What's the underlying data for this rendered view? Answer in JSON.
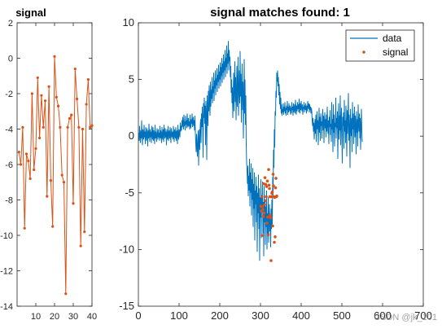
{
  "chart_data": [
    {
      "type": "line",
      "title": "signal",
      "xlim": [
        0,
        40
      ],
      "ylim": [
        -14,
        2
      ],
      "xticks": [
        10,
        20,
        30,
        40
      ],
      "yticks": [
        2,
        0,
        -2,
        -4,
        -6,
        -8,
        -10,
        -12,
        -14
      ],
      "grid": false,
      "series": [
        {
          "color": "#D95319",
          "marker": "dot",
          "x": [
            1,
            2,
            3,
            4,
            5,
            6,
            7,
            8,
            9,
            10,
            11,
            12,
            13,
            14,
            15,
            16,
            17,
            18,
            19,
            20,
            21,
            22,
            23,
            24,
            25,
            26,
            27,
            28,
            29,
            30,
            31,
            32,
            33,
            34,
            35,
            36,
            37,
            38,
            39,
            40
          ],
          "values": [
            -5.3,
            -6.0,
            -3.9,
            -9.6,
            -5.4,
            -5.8,
            -6.8,
            -2.0,
            -6.3,
            -5.1,
            -1.1,
            -4.5,
            -2.1,
            -3.9,
            -2.4,
            -7.8,
            -1.6,
            -6.9,
            -9.5,
            0.1,
            -2.2,
            -2.7,
            -3.9,
            -6.6,
            -7.0,
            -13.3,
            -3.9,
            -3.4,
            -3.2,
            -8.2,
            -0.6,
            -2.3,
            -3.9,
            -10.6,
            -4.0,
            -9.8,
            -2.6,
            -1.2,
            -3.9,
            -3.8
          ]
        }
      ]
    },
    {
      "type": "line",
      "title": "signal matches found: 1",
      "xlim": [
        0,
        700
      ],
      "ylim": [
        -15,
        10
      ],
      "xticks": [
        0,
        100,
        200,
        300,
        400,
        500,
        600,
        700
      ],
      "yticks": [
        10,
        5,
        0,
        -5,
        -10,
        -15
      ],
      "grid": false,
      "legend": "top-right",
      "series": [
        {
          "name": "data",
          "color": "#0072BD",
          "marker": "none",
          "x_start": 1,
          "values": [
            0.3,
            -0.4,
            0.9,
            0.1,
            -0.6,
            0.5,
            -0.2,
            1.4,
            0.0,
            -0.8,
            0.6,
            0.2,
            -0.3,
            1.0,
            -0.1,
            0.4,
            -0.7,
            0.8,
            0.0,
            -0.4,
            0.7,
            0.3,
            -0.9,
            0.5,
            -0.2,
            1.1,
            0.1,
            -0.5,
            0.6,
            -0.1,
            0.4,
            -0.6,
            0.9,
            0.2,
            -0.3,
            0.8,
            -0.4,
            0.5,
            0.1,
            -0.7,
            1.0,
            -0.2,
            0.4,
            0.0,
            -0.5,
            0.7,
            0.2,
            -0.3,
            0.6,
            -0.1,
            0.3,
            -0.4,
            0.9,
            -0.2,
            0.5,
            0.1,
            -0.6,
            0.8,
            0.0,
            -0.3,
            0.6,
            -0.5,
            1.0,
            0.2,
            -0.2,
            0.7,
            -0.1,
            0.4,
            -0.8,
            0.6,
            0.1,
            -0.3,
            0.9,
            -0.4,
            0.3,
            0.5,
            -0.2,
            0.8,
            0.0,
            -0.6,
            0.7,
            0.2,
            -0.1,
            0.4,
            -0.3,
            0.9,
            0.1,
            -0.5,
            0.6,
            0.2,
            -0.2,
            0.8,
            -0.4,
            0.3,
            0.5,
            -0.7,
            1.0,
            0.0,
            -0.3,
            0.6,
            0.3,
            -0.1,
            1.2,
            0.4,
            0.9,
            0.5,
            1.4,
            0.8,
            1.7,
            1.1,
            0.6,
            1.9,
            0.9,
            1.3,
            0.5,
            1.8,
            1.0,
            1.4,
            0.7,
            2.0,
            1.1,
            0.8,
            1.6,
            0.9,
            1.3,
            0.6,
            1.9,
            1.0,
            0.7,
            1.5,
            1.1,
            2.0,
            0.8,
            1.2,
            1.7,
            0.9,
            1.4,
            0.5,
            1.8,
            0.3,
            -0.6,
            -1.4,
            0.2,
            -0.9,
            -1.8,
            -0.3,
            0.5,
            -2.6,
            -0.4,
            0.6,
            -1.2,
            0.9,
            1.5,
            -0.6,
            2.0,
            0.8,
            2.6,
            1.3,
            -1.9,
            2.9,
            1.6,
            3.4,
            1.1,
            2.7,
            -0.8,
            3.1,
            1.9,
            -2.1,
            3.6,
            2.4,
            0.9,
            4.0,
            2.2,
            4.5,
            3.0,
            1.8,
            4.8,
            2.6,
            4.1,
            3.3,
            5.2,
            2.9,
            4.4,
            3.8,
            5.6,
            3.1,
            4.9,
            4.2,
            5.8,
            3.6,
            5.1,
            4.5,
            6.0,
            3.9,
            5.4,
            4.8,
            6.3,
            4.2,
            5.7,
            5.0,
            6.5,
            4.4,
            6.1,
            5.3,
            6.9,
            4.7,
            6.4,
            5.6,
            7.2,
            5.0,
            6.6,
            5.8,
            7.6,
            5.2,
            6.9,
            6.1,
            8.0,
            5.5,
            7.3,
            6.4,
            8.4,
            5.8,
            7.6,
            6.6,
            7.0,
            5.2,
            6.2,
            3.8,
            5.0,
            2.9,
            4.3,
            1.6,
            3.5,
            5.6,
            2.2,
            4.2,
            6.6,
            3.0,
            5.2,
            1.4,
            3.8,
            6.2,
            2.6,
            4.6,
            7.0,
            1.8,
            4.0,
            5.8,
            2.9,
            7.5,
            3.5,
            5.5,
            1.2,
            4.1,
            6.4,
            2.3,
            4.8,
            -0.2,
            3.2,
            6.8,
            2.0,
            5.0,
            1.0,
            3.6,
            -0.8,
            -2.4,
            -3.1,
            -4.2,
            -2.6,
            -5.3,
            -3.5,
            -4.8,
            -2.0,
            -6.2,
            -3.2,
            -5.0,
            -2.4,
            -7.0,
            -3.8,
            -5.6,
            -2.8,
            -8.0,
            -4.2,
            -6.4,
            -3.2,
            -9.2,
            -4.8,
            -6.0,
            -3.6,
            -7.6,
            -4.4,
            -10.2,
            -5.0,
            -6.8,
            -3.4,
            -8.2,
            -4.6,
            -11.0,
            -5.4,
            -7.2,
            -3.8,
            -9.0,
            -5.2,
            -6.6,
            -4.0,
            -8.6,
            -5.8,
            -10.6,
            -4.4,
            -7.6,
            -5.6,
            -9.6,
            -6.2,
            -8.0,
            -4.8,
            -10.0,
            -6.8,
            -8.8,
            -5.4,
            -9.4,
            -7.2,
            -6.0,
            -8.4,
            -7.0,
            -9.8,
            -6.4,
            -8.2,
            -5.6,
            -7.8,
            -3.6,
            -5.2,
            -1.2,
            -2.8,
            0.6,
            -1.0,
            2.2,
            1.8,
            4.0,
            3.4,
            5.6,
            4.8,
            5.8,
            4.4,
            5.2,
            3.6,
            4.6,
            2.8,
            3.9,
            2.4,
            3.4,
            2.0,
            2.8,
            1.8,
            2.4,
            2.1,
            2.9,
            1.9,
            2.6,
            2.2,
            3.0,
            2.0,
            2.5,
            1.8,
            2.7,
            2.3,
            3.1,
            1.9,
            2.6,
            2.1,
            2.9,
            2.4,
            2.2,
            2.7,
            1.9,
            2.5,
            2.0,
            3.0,
            2.3,
            2.6,
            1.8,
            2.9,
            2.1,
            2.4,
            2.8,
            2.0,
            3.2,
            2.5,
            1.9,
            2.7,
            2.2,
            3.0,
            2.4,
            2.8,
            2.1,
            3.3,
            2.6,
            2.0,
            2.9,
            2.3,
            3.1,
            2.5,
            2.2,
            2.8,
            1.9,
            2.6,
            2.4,
            3.0,
            2.1,
            2.7,
            2.3,
            2.9,
            2.5,
            2.0,
            2.7,
            2.2,
            3.1,
            2.6,
            2.4,
            2.9,
            2.1,
            2.8,
            2.3,
            2.6,
            2.0,
            2.5,
            2.2,
            1.4,
            0.9,
            1.6,
            0.4,
            1.2,
            -0.3,
            0.8,
            1.5,
            0.2,
            1.9,
            -0.5,
            1.0,
            2.2,
            0.6,
            1.4,
            -0.8,
            1.1,
            2.5,
            0.3,
            1.7,
            -0.4,
            2.0,
            0.9,
            1.3,
            -0.2,
            1.6,
            2.4,
            0.5,
            1.8,
            -0.6,
            1.2,
            2.1,
            0.7,
            1.5,
            -0.1,
            1.9,
            0.4,
            2.6,
            1.0,
            0.2,
            1.4,
            -0.7,
            1.7,
            0.8,
            2.3,
            0.1,
            1.1,
            -0.5,
            3.0,
            0.6,
            1.5,
            -1.4,
            2.8,
            0.3,
            1.9,
            -0.9,
            1.2,
            0.8,
            3.4,
            -0.2,
            1.6,
            0.7,
            2.2,
            -2.0,
            1.0,
            2.9,
            -0.3,
            1.8,
            0.5,
            3.6,
            -0.8,
            1.3,
            2.5,
            0.1,
            -2.4,
            1.7,
            0.9,
            2.1,
            -1.1,
            3.2,
            0.4,
            1.4,
            -0.6,
            2.7,
            1.0,
            -1.8,
            2.3,
            0.2,
            1.5,
            3.8,
            -0.4,
            1.9,
            0.7,
            -2.8,
            2.4,
            1.1,
            0.0,
            1.6,
            -1.4,
            3.0,
            0.6,
            2.0,
            -0.7,
            1.3,
            2.6,
            -0.1,
            1.8,
            0.9,
            -1.6,
            2.2,
            0.3,
            1.5,
            -0.9,
            2.8,
            1.2,
            0.4,
            2.0,
            -0.2,
            1.6,
            -1.2,
            0.8,
            2.4,
            0.5,
            -0.5
          ],
          "y_scale": 0.5
        },
        {
          "name": "signal",
          "color": "#D95319",
          "marker": "dot",
          "x": [
            301,
            302,
            303,
            304,
            305,
            306,
            307,
            308,
            309,
            310,
            311,
            312,
            313,
            314,
            315,
            316,
            317,
            318,
            319,
            320,
            321,
            322,
            323,
            324,
            325,
            326,
            327,
            328,
            329,
            330,
            331,
            332,
            333,
            334,
            335,
            336,
            337,
            338,
            339,
            340
          ],
          "values": [
            -5.3,
            -6.0,
            -3.9,
            -9.6,
            -5.4,
            -5.8,
            -6.8,
            -2.0,
            -6.3,
            -5.1,
            -1.1,
            -4.5,
            -2.1,
            -3.9,
            -2.4,
            -7.8,
            -1.6,
            -6.9,
            -9.5,
            0.1,
            -2.2,
            -2.7,
            -3.9,
            -6.6,
            -7.0,
            -13.3,
            -3.9,
            -3.4,
            -3.2,
            -8.2,
            -0.6,
            -2.3,
            -3.9,
            -10.6,
            -4.0,
            -9.8,
            -2.6,
            -1.2,
            -3.9,
            -3.8
          ],
          "y_offset": -3.0,
          "y_scale": 0.6
        }
      ],
      "legend_items": [
        "data",
        "signal"
      ]
    }
  ],
  "watermark": "CSDN @jk_101"
}
